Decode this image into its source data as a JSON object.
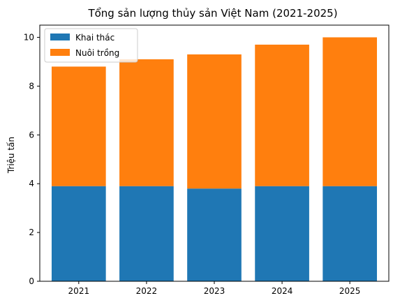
{
  "chart_data": {
    "type": "bar",
    "stacked": true,
    "title": "Tổng sản lượng thủy sản Việt Nam (2021-2025)",
    "xlabel": "",
    "ylabel": "Triệu tấn",
    "categories": [
      "2021",
      "2022",
      "2023",
      "2024",
      "2025"
    ],
    "series": [
      {
        "name": "Khai thác",
        "color": "#1f77b4",
        "values": [
          3.9,
          3.9,
          3.8,
          3.9,
          3.9
        ]
      },
      {
        "name": "Nuôi trồng",
        "color": "#ff7f0e",
        "values": [
          4.9,
          5.2,
          5.5,
          5.8,
          6.1
        ]
      }
    ],
    "ylim": [
      0,
      10.5
    ],
    "yticks": [
      0,
      2,
      4,
      6,
      8,
      10
    ],
    "grid": false,
    "legend_position": "top-left"
  }
}
